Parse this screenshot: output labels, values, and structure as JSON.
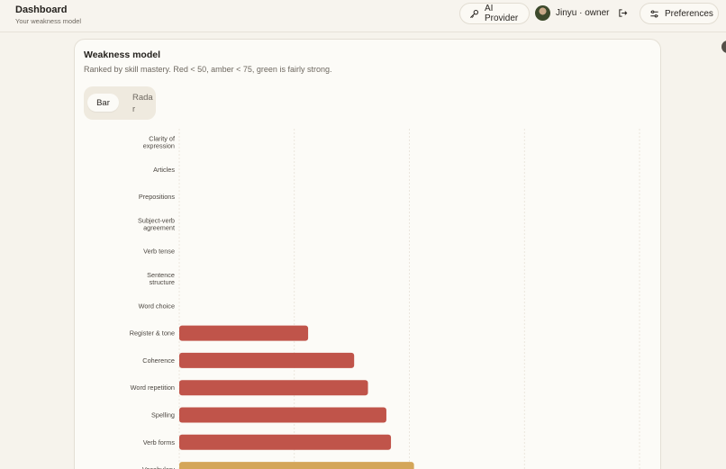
{
  "header": {
    "title": "Dashboard",
    "subtitle": "Your weakness model",
    "ai_provider_label": "AI Provider",
    "user_label": "Jinyu · owner",
    "preferences_label": "Preferences"
  },
  "card": {
    "title": "Weakness model",
    "subtitle": "Ranked by skill mastery. Red < 50, amber < 75, green is fairly strong."
  },
  "toggle": {
    "bar_label": "Bar",
    "radar_label": "Radar",
    "selected": "Bar"
  },
  "colors": {
    "red": "#c0544a",
    "amber": "#d4a659",
    "green": "#6e9e6a"
  },
  "chart_data": {
    "type": "bar",
    "orientation": "horizontal",
    "categories": [
      [
        "Clarity of",
        "expression"
      ],
      [
        "Articles"
      ],
      [
        "Prepositions"
      ],
      [
        "Subject-verb",
        "agreement"
      ],
      [
        "Verb tense"
      ],
      [
        "Sentence",
        "structure"
      ],
      [
        "Word choice"
      ],
      [
        "Register & tone"
      ],
      [
        "Coherence"
      ],
      [
        "Word repetition"
      ],
      [
        "Spelling"
      ],
      [
        "Verb forms"
      ],
      [
        "Vocabulary"
      ]
    ],
    "values": [
      0,
      0,
      0,
      0,
      0,
      0,
      0,
      28,
      38,
      41,
      45,
      46,
      51
    ],
    "xlim": [
      0,
      100
    ],
    "grid": true
  }
}
